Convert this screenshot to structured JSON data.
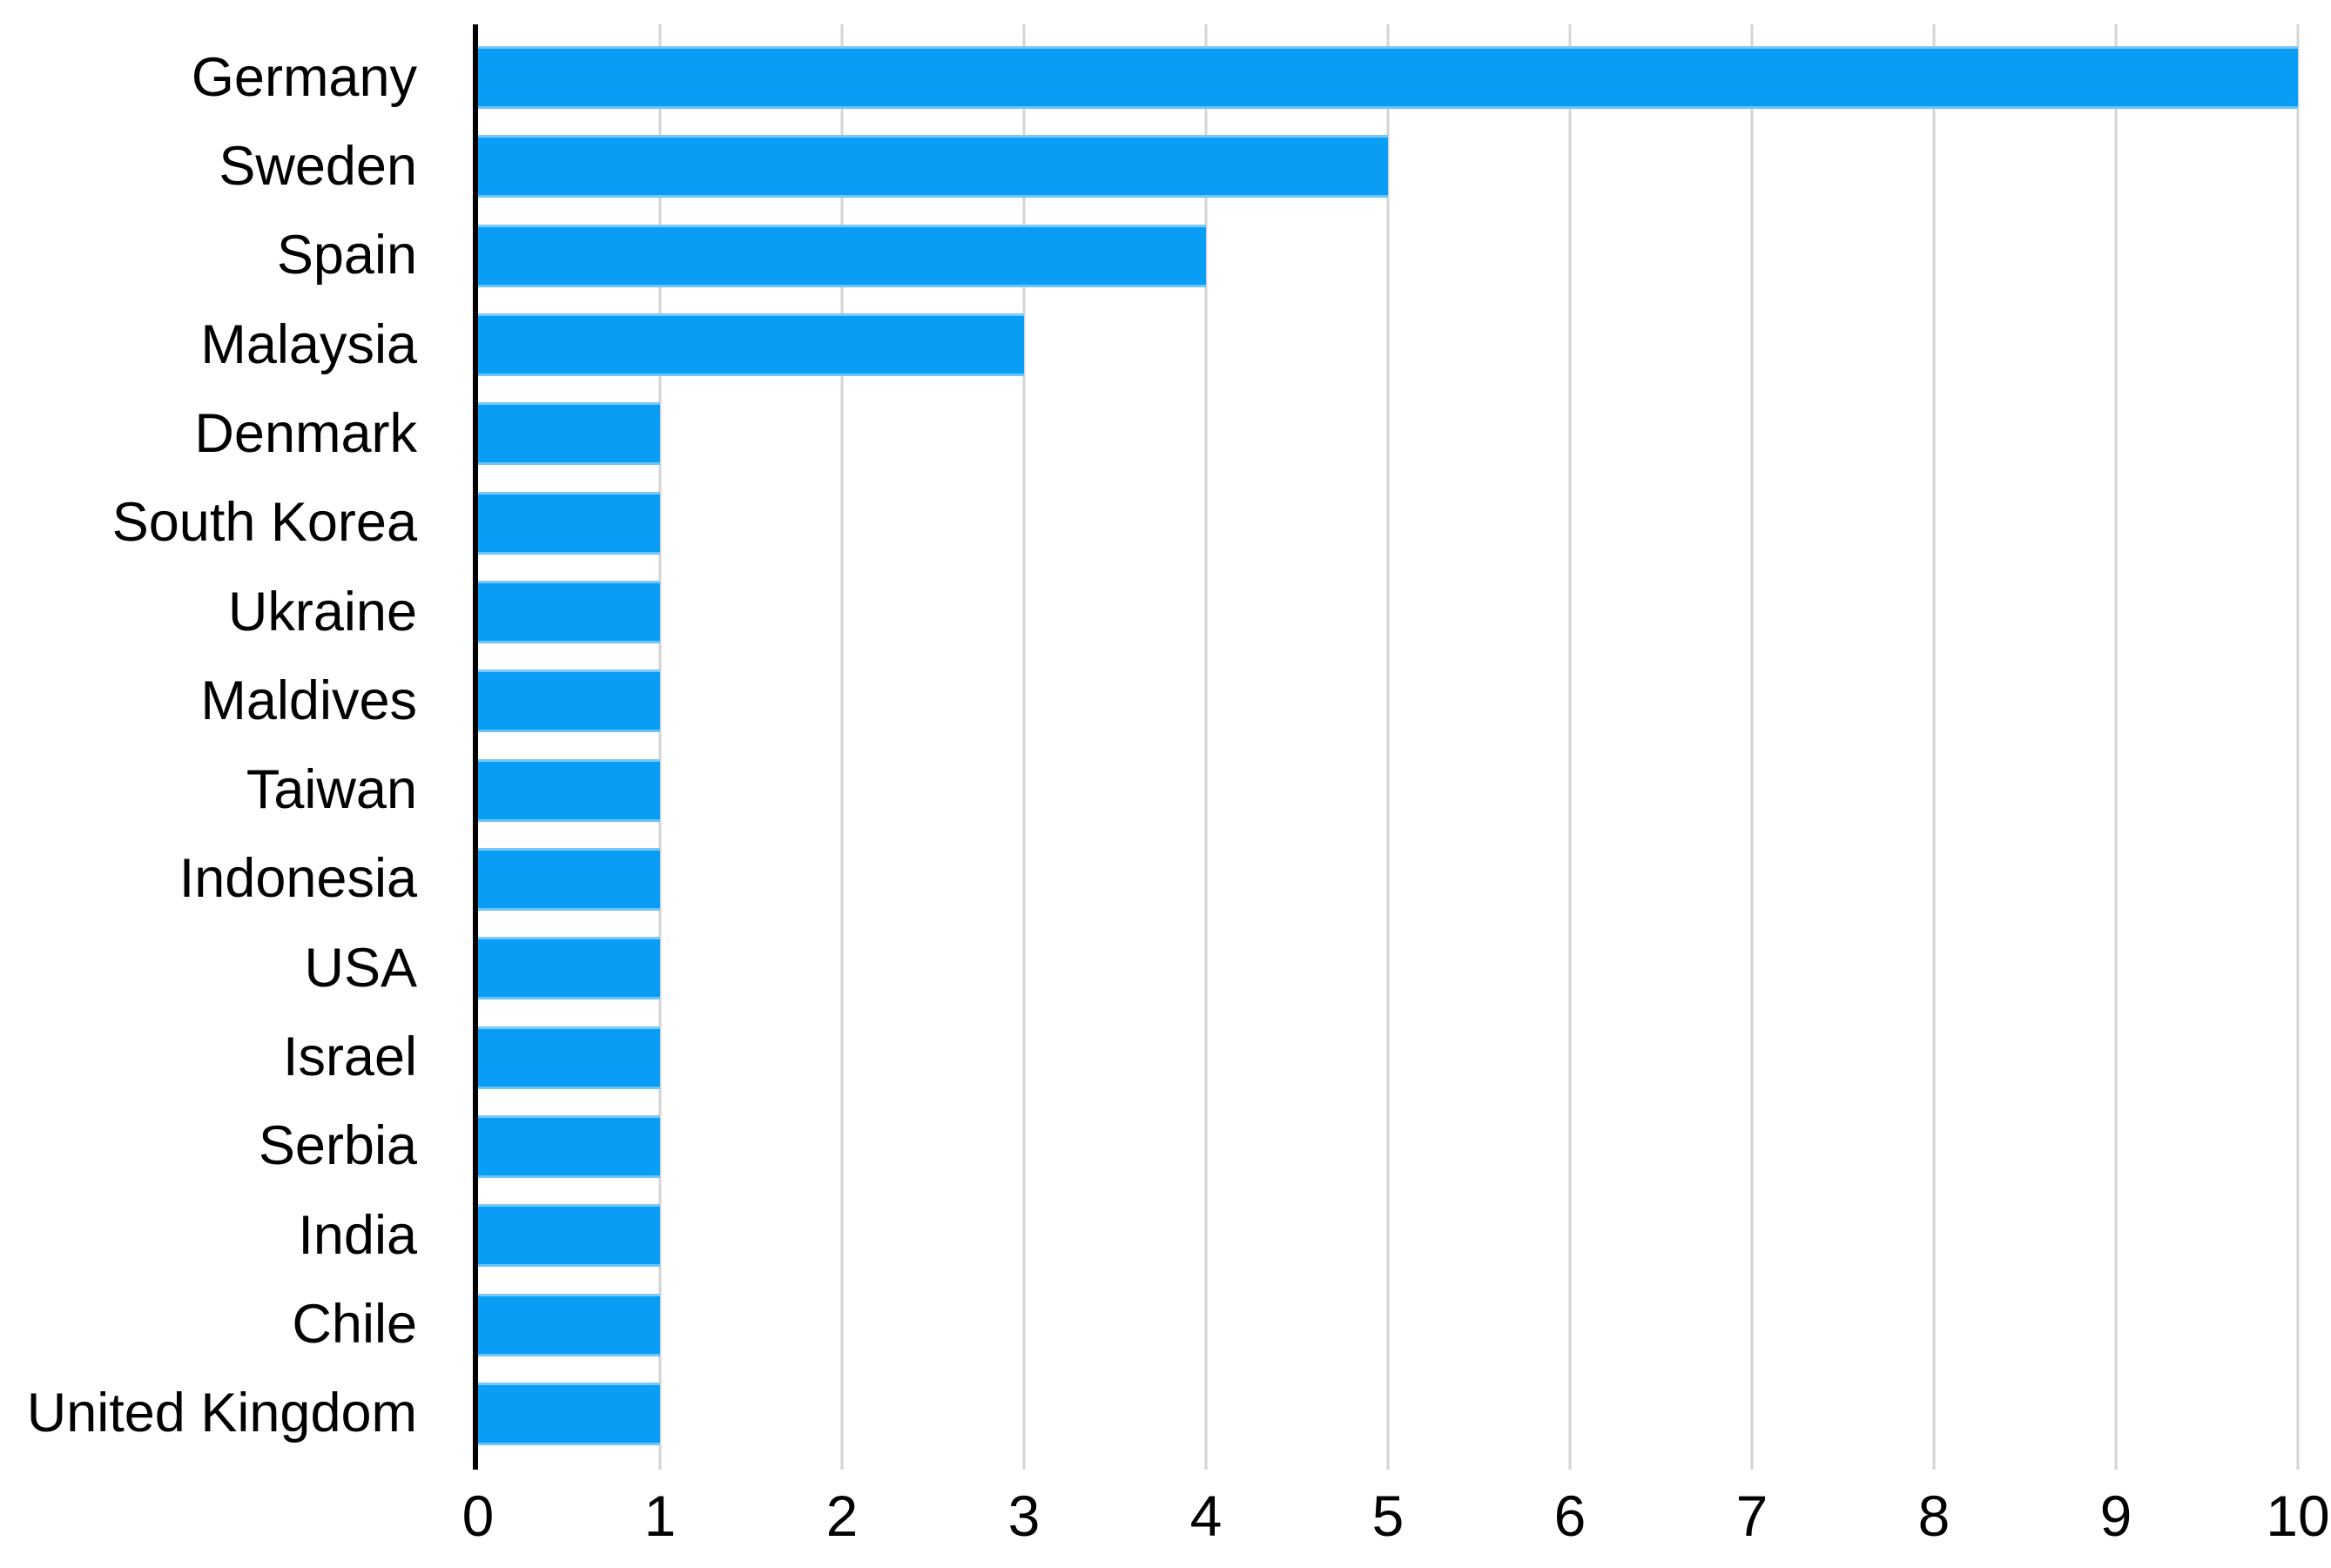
{
  "chart_data": {
    "type": "bar",
    "orientation": "horizontal",
    "title": "",
    "xlabel": "",
    "ylabel": "",
    "categories": [
      "Germany",
      "Sweden",
      "Spain",
      "Malaysia",
      "Denmark",
      "South Korea",
      "Ukraine",
      "Maldives",
      "Taiwan",
      "Indonesia",
      "USA",
      "Israel",
      "Serbia",
      "India",
      "Chile",
      "United Kingdom"
    ],
    "values": [
      10,
      5,
      4,
      3,
      1,
      1,
      1,
      1,
      1,
      1,
      1,
      1,
      1,
      1,
      1,
      1
    ],
    "xlim": [
      0,
      10
    ],
    "x_ticks": [
      0,
      1,
      2,
      3,
      4,
      5,
      6,
      7,
      8,
      9,
      10
    ],
    "grid": true,
    "legend": "none",
    "bar_color": "#0a9df5",
    "gridline_color": "#d4d4d4",
    "axis_color": "#000000",
    "label_color": "#000000"
  }
}
